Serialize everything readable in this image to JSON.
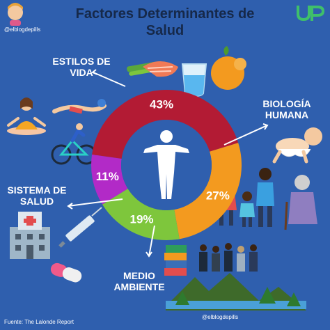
{
  "header": {
    "title_line1": "Factores Determinantes de",
    "title_line2": "Salud",
    "handle_top": "@elblogdepills",
    "handle_bottom": "@elblogdepills",
    "logo_text": "UP"
  },
  "chart_data": {
    "type": "pie",
    "categories": [
      "ESTILOS DE VIDA",
      "BIOLOGÍA HUMANA",
      "MEDIO AMBIENTE",
      "SISTEMA DE SALUD"
    ],
    "values": [
      43,
      27,
      19,
      11
    ],
    "labels": [
      "43%",
      "27%",
      "19%",
      "11%"
    ],
    "colors": [
      "#b31b34",
      "#f39a1f",
      "#7ec63c",
      "#b22ac7"
    ],
    "title": "Factores Determinantes de Salud",
    "legend": "none"
  },
  "labels": {
    "estilos_line1": "ESTILOS DE",
    "estilos_line2": "VIDA",
    "biologia_line1": "BIOLOGÍA",
    "biologia_line2": "HUMANA",
    "sistema_line1": "SISTEMA DE",
    "sistema_line2": "SALUD",
    "medio_line1": "MEDIO",
    "medio_line2": "AMBIENTE"
  },
  "footer": {
    "source": "Fuente: The Lalonde Report"
  },
  "icons": [
    "avatar-icon",
    "food-icon",
    "water-glass-icon",
    "orange-icon",
    "yoga-icon",
    "swimmer-icon",
    "cyclist-icon",
    "baby-icon",
    "family-icon",
    "elderly-icon",
    "hospital-icon",
    "syringe-icon",
    "pill-icon",
    "books-icon",
    "people-group-icon",
    "nature-icon",
    "human-body-icon"
  ]
}
